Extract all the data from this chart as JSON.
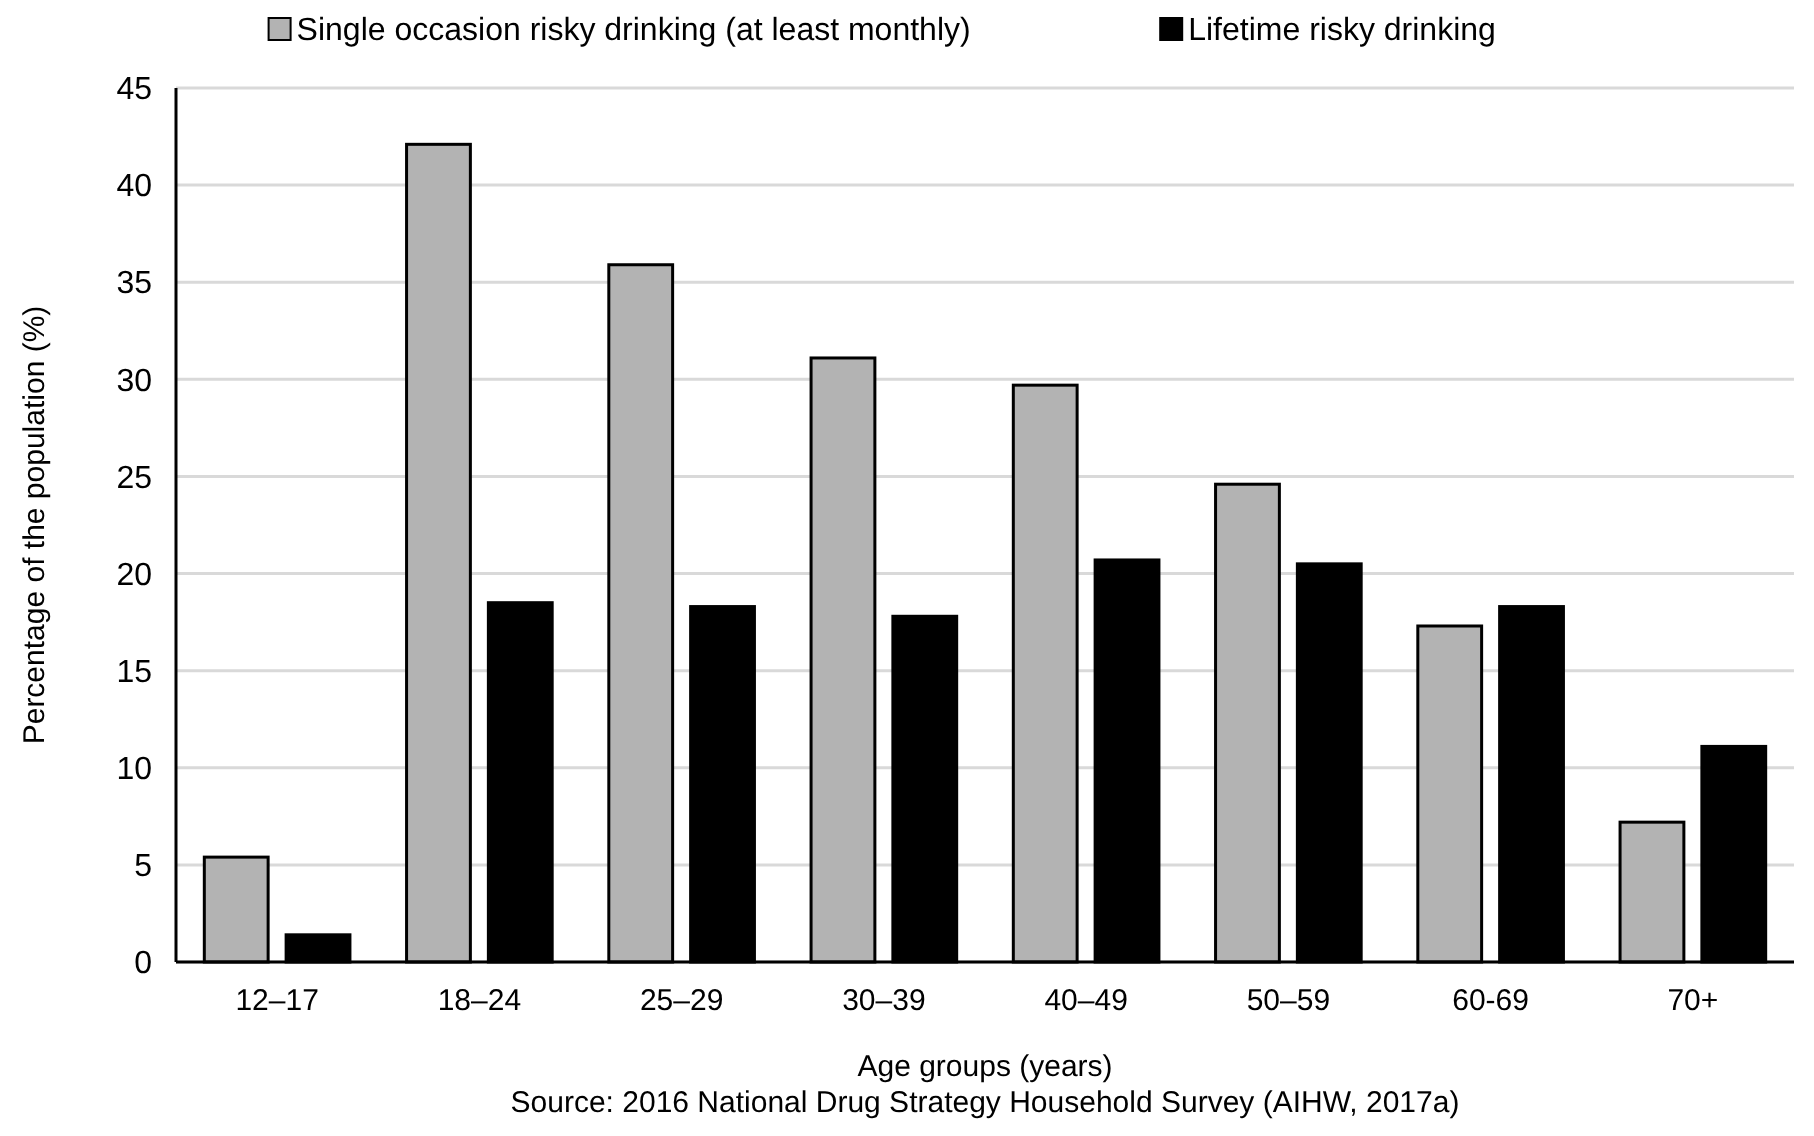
{
  "chart_data": {
    "type": "bar",
    "xlabel": "Age groups (years)",
    "ylabel": "Percentage of the population (%)",
    "annotations": [
      "Source: 2016 National Drug Strategy Household Survey (AIHW, 2017a)"
    ],
    "categories": [
      "12–17",
      "18–24",
      "25–29",
      "30–39",
      "40–49",
      "50–59",
      "60-69",
      "70+"
    ],
    "series": [
      {
        "name": "Single occasion risky drinking (at least monthly)",
        "color": "#b3b3b3",
        "values": [
          5.4,
          42.1,
          35.9,
          31.1,
          29.7,
          24.6,
          17.3,
          7.2
        ]
      },
      {
        "name": "Lifetime risky drinking",
        "color": "#000000",
        "values": [
          1.4,
          18.5,
          18.3,
          17.8,
          20.7,
          20.5,
          18.3,
          11.1
        ]
      }
    ],
    "ylim": [
      0,
      45
    ],
    "yticks": [
      0,
      5,
      10,
      15,
      20,
      25,
      30,
      35,
      40,
      45
    ],
    "grid": "y",
    "legend": "top"
  }
}
